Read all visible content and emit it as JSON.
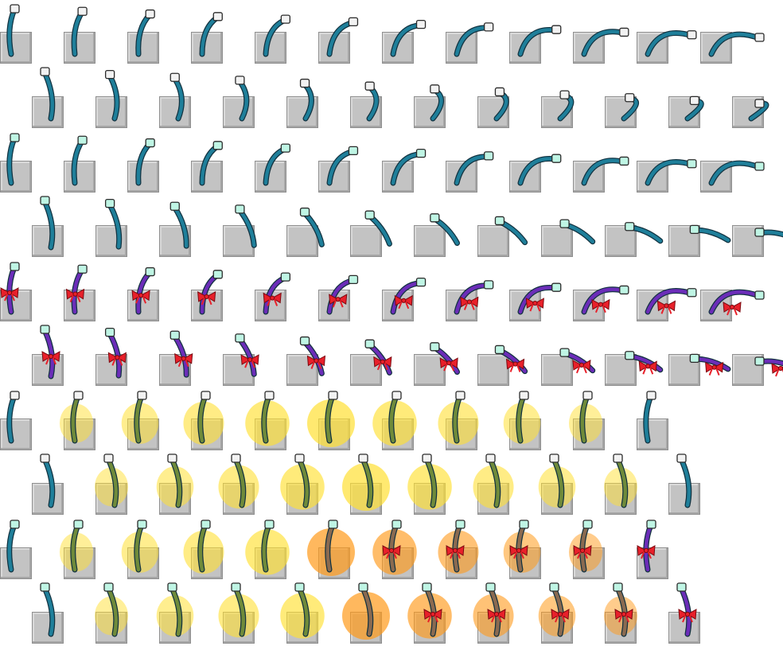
{
  "sheet": {
    "background": "#ffffff",
    "block_color": "#c3c3c3",
    "rows": [
      {
        "variant": "cyan-white-head",
        "frames": 12,
        "offset": "left",
        "motion": "fall-right"
      },
      {
        "variant": "cyan-white-head",
        "frames": 12,
        "offset": "right",
        "motion": "fall-down-right"
      },
      {
        "variant": "cyan-mint-head",
        "frames": 12,
        "offset": "left",
        "motion": "fall-right"
      },
      {
        "variant": "cyan-mint-head",
        "frames": 12,
        "offset": "right",
        "motion": "fall-down-right"
      },
      {
        "variant": "purple-ribbon",
        "frames": 12,
        "offset": "left",
        "motion": "fall-right"
      },
      {
        "variant": "purple-ribbon",
        "frames": 12,
        "offset": "right",
        "motion": "fall-down-right"
      },
      {
        "variant": "cyan-white-head",
        "frames": 11,
        "offset": "left",
        "motion": "glow-yellow"
      },
      {
        "variant": "cyan-white-head",
        "frames": 11,
        "offset": "right",
        "motion": "glow-yellow"
      },
      {
        "variant": "cyan-mint-head",
        "frames": 11,
        "offset": "left",
        "motion": "glow-orange-to-ribbon"
      },
      {
        "variant": "cyan-mint-head",
        "frames": 11,
        "offset": "right",
        "motion": "glow-orange-to-ribbon"
      }
    ]
  },
  "colors": {
    "cyan_stick": "#1f7f9a",
    "purple_stick": "#6b2db8",
    "olive_stick": "#6f8a3a",
    "brown_stick": "#8a6a50",
    "head_white": "#f2f2f2",
    "head_mint": "#bff5e4",
    "ribbon": "#e8202a",
    "glow": "#ffe033",
    "glow_orange": "#ff9a1a"
  }
}
